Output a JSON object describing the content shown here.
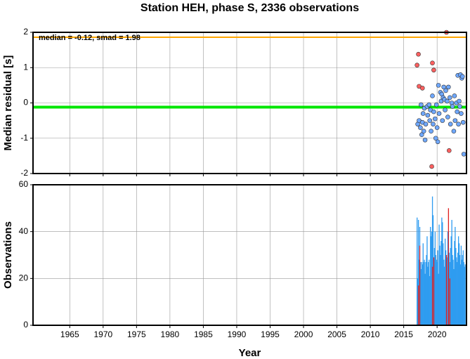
{
  "chart_data": [
    {
      "type": "scatter",
      "title": "Station HEH, phase S, 2336 observations",
      "ylabel": "Median residual [s]",
      "annotation": "median = -0.12, smad = 1.98",
      "xlim": [
        1959.5,
        2024.4
      ],
      "xticks": [
        1965,
        1970,
        1975,
        1980,
        1985,
        1990,
        1995,
        2000,
        2005,
        2010,
        2015,
        2020
      ],
      "ylim": [
        -2,
        2
      ],
      "yticks": [
        -2,
        -1,
        0,
        1,
        2
      ],
      "grid": true,
      "hlines": [
        {
          "value": 1.86,
          "color": "#ffa500"
        },
        {
          "value": -0.12,
          "color": "#00e600"
        }
      ],
      "series": [
        {
          "color": "#6fa8ff",
          "x": [
            2017.1,
            2017.3,
            2017.5,
            2017.6,
            2017.7,
            2017.8,
            2017.9,
            2018.0,
            2018.1,
            2018.2,
            2018.3,
            2018.5,
            2018.6,
            2018.8,
            2018.9,
            2019.0,
            2019.1,
            2019.3,
            2019.4,
            2019.5,
            2019.7,
            2019.8,
            2019.9,
            2020.0,
            2020.1,
            2020.2,
            2020.3,
            2020.5,
            2020.6,
            2020.7,
            2020.8,
            2020.9,
            2021.0,
            2021.1,
            2021.2,
            2021.3,
            2021.5,
            2021.6,
            2021.7,
            2021.9,
            2022.0,
            2022.2,
            2022.3,
            2022.5,
            2022.6,
            2022.7,
            2022.9,
            2023.0,
            2023.1,
            2023.2,
            2023.3,
            2023.4,
            2023.5,
            2023.6,
            2023.7,
            2023.8,
            2023.9,
            2024.0
          ],
          "values": [
            -0.6,
            -0.5,
            -0.7,
            -0.05,
            -0.9,
            -0.55,
            -0.3,
            -0.8,
            -0.15,
            -1.05,
            -0.6,
            -0.1,
            -0.35,
            -0.05,
            -0.5,
            -0.2,
            -0.8,
            0.2,
            -0.6,
            -0.25,
            -0.45,
            -1.0,
            -0.05,
            -0.7,
            -1.1,
            0.5,
            -0.3,
            0.3,
            0.05,
            0.25,
            -0.5,
            0.15,
            0.45,
            0.1,
            -0.2,
            0.35,
            0.05,
            -0.4,
            0.45,
            0.15,
            -0.6,
            0.0,
            -0.1,
            -0.8,
            0.2,
            -0.5,
            0.0,
            -0.25,
            0.78,
            -0.6,
            0.05,
            -0.1,
            0.8,
            -0.3,
            0.7,
            0.75,
            -0.55,
            -1.45
          ]
        },
        {
          "color": "#ff6060",
          "x": [
            2017.0,
            2017.2,
            2017.3,
            2017.8,
            2019.2,
            2019.3,
            2019.5,
            2021.4,
            2021.8
          ],
          "values": [
            1.07,
            1.38,
            0.47,
            0.42,
            -1.8,
            1.13,
            0.93,
            2.0,
            -1.35
          ]
        }
      ]
    },
    {
      "type": "bar",
      "ylabel": "Observations",
      "xlabel": "Year",
      "xlim": [
        1959.5,
        2024.4
      ],
      "xticks": [
        1965,
        1970,
        1975,
        1980,
        1985,
        1990,
        1995,
        2000,
        2005,
        2010,
        2015,
        2020
      ],
      "ylim": [
        0,
        60
      ],
      "yticks": [
        0,
        20,
        40,
        60
      ],
      "grid": true,
      "series": [
        {
          "color": "#2f9cf0",
          "x": [
            2017.0,
            2017.1,
            2017.2,
            2017.3,
            2017.4,
            2017.5,
            2017.6,
            2017.7,
            2017.8,
            2017.9,
            2018.0,
            2018.1,
            2018.2,
            2018.3,
            2018.4,
            2018.5,
            2018.6,
            2018.7,
            2018.8,
            2018.9,
            2019.0,
            2019.1,
            2019.2,
            2019.3,
            2019.4,
            2019.5,
            2019.6,
            2019.7,
            2019.8,
            2019.9,
            2020.0,
            2020.1,
            2020.2,
            2020.3,
            2020.4,
            2020.5,
            2020.6,
            2020.7,
            2020.8,
            2020.9,
            2021.0,
            2021.1,
            2021.2,
            2021.3,
            2021.4,
            2021.5,
            2021.6,
            2021.7,
            2021.8,
            2021.9,
            2022.0,
            2022.1,
            2022.2,
            2022.3,
            2022.4,
            2022.5,
            2022.6,
            2022.7,
            2022.8,
            2022.9,
            2023.0,
            2023.1,
            2023.2,
            2023.3,
            2023.4,
            2023.5,
            2023.6,
            2023.7,
            2023.8,
            2023.9,
            2024.0,
            2024.1,
            2024.2
          ],
          "values": [
            46,
            20,
            45,
            28,
            42,
            27,
            24,
            27,
            26,
            35,
            27,
            28,
            22,
            27,
            30,
            38,
            25,
            27,
            28,
            21,
            42,
            38,
            40,
            55,
            47,
            27,
            33,
            40,
            30,
            28,
            27,
            32,
            22,
            43,
            34,
            30,
            36,
            46,
            44,
            35,
            28,
            25,
            37,
            32,
            26,
            29,
            40,
            35,
            31,
            27,
            33,
            38,
            45,
            30,
            28,
            24,
            36,
            42,
            33,
            29,
            27,
            31,
            38,
            35,
            30,
            26,
            34,
            28,
            30,
            32,
            27,
            25,
            26
          ]
        },
        {
          "color": "#e02020",
          "x": [
            2017.2,
            2017.4,
            2019.3,
            2019.5,
            2021.4,
            2021.7,
            2021.9
          ],
          "values": [
            17,
            34,
            25,
            29,
            30,
            50,
            20
          ]
        }
      ]
    }
  ]
}
